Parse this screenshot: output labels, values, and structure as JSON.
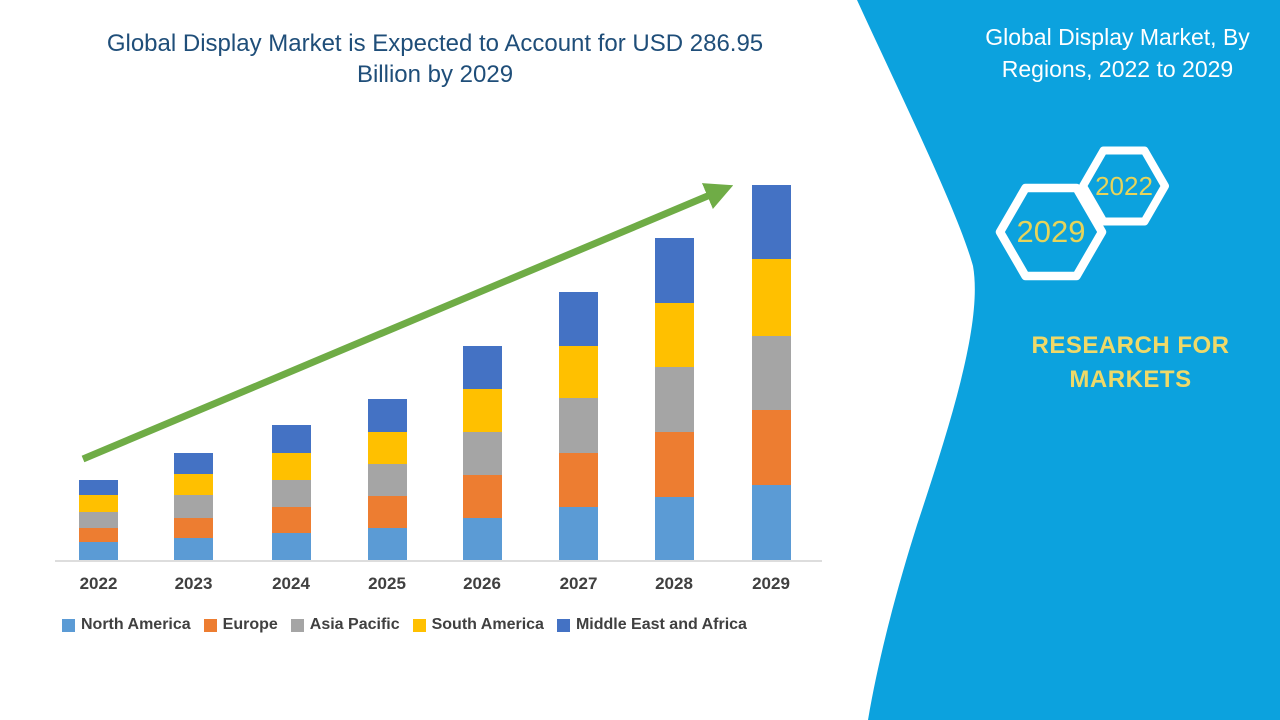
{
  "header": {
    "title_line1": "Global Display Market is Expected to Account for USD 286.95",
    "title_line2": "Billion by 2029",
    "title_color": "#1F4E79"
  },
  "side_panel": {
    "background_color": "#0CA2DE",
    "title_line1": "Global Display Market, By",
    "title_line2": "Regions, 2022 to 2029",
    "badge_2022": "2022",
    "badge_2029": "2029",
    "badge_text_color": "#E6D45A",
    "brand_line1": "RESEARCH FOR",
    "brand_line2": "MARKETS",
    "brand_text_color": "#EFD968"
  },
  "chart_data": {
    "type": "bar",
    "stacked": true,
    "title": "Global Display Market is Expected to Account for USD 286.95 Billion by 2029",
    "unit": "USD Billion",
    "values_are_estimates": true,
    "categories": [
      "2022",
      "2023",
      "2024",
      "2025",
      "2026",
      "2027",
      "2028",
      "2029"
    ],
    "series": [
      {
        "name": "North America",
        "color": "#5B9BD5",
        "values": [
          13.8,
          16.8,
          20.7,
          24.5,
          32.1,
          40.6,
          48.2,
          57.4
        ]
      },
      {
        "name": "Europe",
        "color": "#ED7D31",
        "values": [
          10.7,
          15.3,
          19.9,
          24.5,
          32.9,
          41.3,
          49.7,
          57.4
        ]
      },
      {
        "name": "Asia Pacific",
        "color": "#A5A5A5",
        "values": [
          12.2,
          17.6,
          20.7,
          24.5,
          32.9,
          42.1,
          49.7,
          56.6
        ]
      },
      {
        "name": "South America",
        "color": "#FFC000",
        "values": [
          13.0,
          16.1,
          20.7,
          24.5,
          32.9,
          39.8,
          49.0,
          58.9
        ]
      },
      {
        "name": "Middle East and Africa",
        "color": "#4472C4",
        "values": [
          11.5,
          16.1,
          21.4,
          25.3,
          32.9,
          41.3,
          49.7,
          56.6
        ]
      }
    ],
    "totals_estimated": [
      61.2,
      81.9,
      103.4,
      123.3,
      163.7,
      205.1,
      246.3,
      286.95
    ],
    "highlight_total_2029": 286.95,
    "ylim": [
      0,
      300
    ],
    "grid": false,
    "y_axis_labels_shown": false,
    "legend_position": "bottom",
    "xlabel_color": "#404040",
    "annotations": [
      {
        "type": "arrow",
        "meaning": "upward growth trend",
        "color": "#6FAC46"
      }
    ]
  }
}
